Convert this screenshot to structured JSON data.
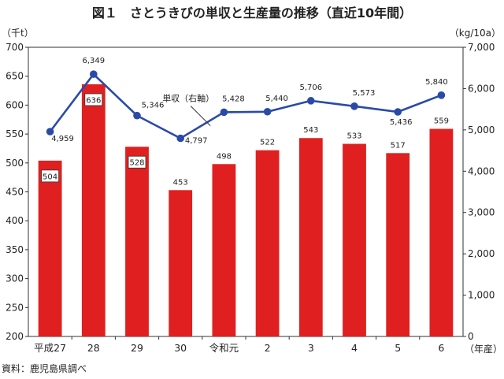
{
  "chart_data": {
    "type": "bar+line",
    "title": "図１　さとうきびの単収と生産量の推移（直近10年間）",
    "categories": [
      "平成27",
      "28",
      "29",
      "30",
      "令和元",
      "2",
      "3",
      "4",
      "5",
      "6"
    ],
    "x_unit": "（年産）",
    "series": [
      {
        "type": "bar",
        "axis": "left",
        "color": "#e02020",
        "values": [
          504,
          636,
          528,
          453,
          498,
          522,
          543,
          533,
          517,
          559
        ]
      },
      {
        "type": "line",
        "axis": "right",
        "name": "単収（右軸）",
        "color": "#2b4aa8",
        "values": [
          4959,
          6349,
          5346,
          4797,
          5428,
          5440,
          5706,
          5573,
          5436,
          5840
        ]
      }
    ],
    "y_left": {
      "unit": "（千t）",
      "min": 200,
      "max": 700,
      "step": 50
    },
    "y_right": {
      "unit": "（kg/10a）",
      "min": 0,
      "max": 7000,
      "step": 1000
    },
    "grid": false,
    "source": "資料：鹿児島県調べ"
  }
}
